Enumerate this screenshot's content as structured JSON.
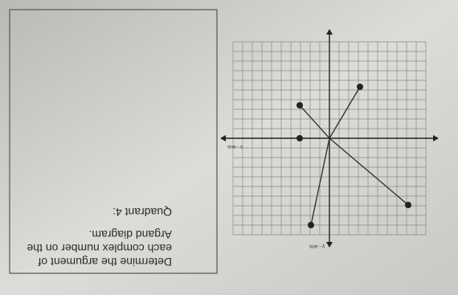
{
  "instructions": [
    "Determine the argument of",
    "each complex number on the",
    "Argand diagram."
  ],
  "question": "Quadrant 4:",
  "diagram": {
    "y_axis_label": "y - axis",
    "x_axis_label": "x - axis"
  }
}
